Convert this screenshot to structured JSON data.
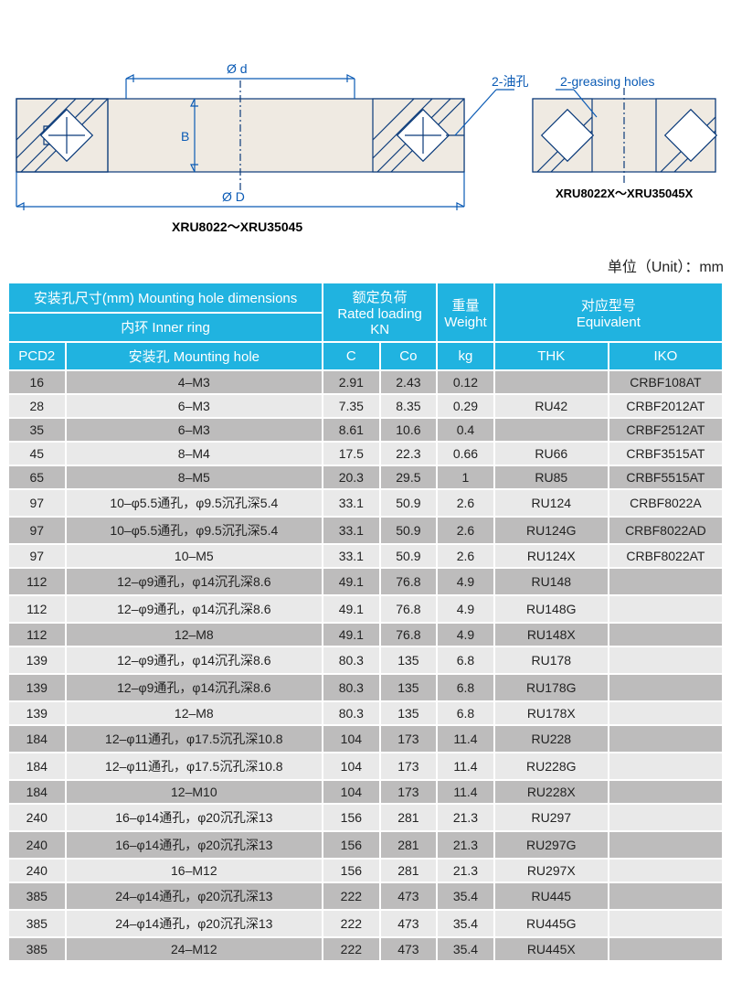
{
  "diagram": {
    "label_d": "Ø d",
    "label_B": "B",
    "label_D": "Ø D",
    "callout_left": "2-油孔",
    "callout_right": "2-greasing holes",
    "caption_left": "XRU8022～XRU35045",
    "caption_right": "XRU8022X～XRU35045X"
  },
  "unit_label": "单位（Unit）：mm",
  "headers": {
    "mount_dims": "安装孔尺寸(mm) Mounting hole dimensions",
    "inner_ring": "内环 Inner ring",
    "rated_cn": "额定负荷",
    "rated_en": "Rated loading",
    "rated_unit": "KN",
    "weight_cn": "重量",
    "weight_en": "Weight",
    "equiv_cn": "对应型号",
    "equiv_en": "Equivalent",
    "pcd2": "PCD2",
    "mount_hole": "安装孔 Mounting hole",
    "c": "C",
    "co": "Co",
    "kg": "kg",
    "thk": "THK",
    "iko": "IKO"
  },
  "rows": [
    {
      "pcd2": "16",
      "hole": "4–M3",
      "c": "2.91",
      "co": "2.43",
      "kg": "0.12",
      "thk": "",
      "iko": "CRBF108AT",
      "shade": "gray"
    },
    {
      "pcd2": "28",
      "hole": "6–M3",
      "c": "7.35",
      "co": "8.35",
      "kg": "0.29",
      "thk": "RU42",
      "iko": "CRBF2012AT",
      "shade": "light"
    },
    {
      "pcd2": "35",
      "hole": "6–M3",
      "c": "8.61",
      "co": "10.6",
      "kg": "0.4",
      "thk": "",
      "iko": "CRBF2512AT",
      "shade": "gray"
    },
    {
      "pcd2": "45",
      "hole": "8–M4",
      "c": "17.5",
      "co": "22.3",
      "kg": "0.66",
      "thk": "RU66",
      "iko": "CRBF3515AT",
      "shade": "light"
    },
    {
      "pcd2": "65",
      "hole": "8–M5",
      "c": "20.3",
      "co": "29.5",
      "kg": "1",
      "thk": "RU85",
      "iko": "CRBF5515AT",
      "shade": "gray"
    },
    {
      "pcd2": "97",
      "hole": "10–φ5.5通孔，φ9.5沉孔深5.4",
      "c": "33.1",
      "co": "50.9",
      "kg": "2.6",
      "thk": "RU124",
      "iko": "CRBF8022A",
      "shade": "light"
    },
    {
      "pcd2": "97",
      "hole": "10–φ5.5通孔，φ9.5沉孔深5.4",
      "c": "33.1",
      "co": "50.9",
      "kg": "2.6",
      "thk": "RU124G",
      "iko": "CRBF8022AD",
      "shade": "gray"
    },
    {
      "pcd2": "97",
      "hole": "10–M5",
      "c": "33.1",
      "co": "50.9",
      "kg": "2.6",
      "thk": "RU124X",
      "iko": "CRBF8022AT",
      "shade": "light"
    },
    {
      "pcd2": "112",
      "hole": "12–φ9通孔，φ14沉孔深8.6",
      "c": "49.1",
      "co": "76.8",
      "kg": "4.9",
      "thk": "RU148",
      "iko": "",
      "shade": "gray"
    },
    {
      "pcd2": "112",
      "hole": "12–φ9通孔，φ14沉孔深8.6",
      "c": "49.1",
      "co": "76.8",
      "kg": "4.9",
      "thk": "RU148G",
      "iko": "",
      "shade": "light"
    },
    {
      "pcd2": "112",
      "hole": "12–M8",
      "c": "49.1",
      "co": "76.8",
      "kg": "4.9",
      "thk": "RU148X",
      "iko": "",
      "shade": "gray"
    },
    {
      "pcd2": "139",
      "hole": "12–φ9通孔，φ14沉孔深8.6",
      "c": "80.3",
      "co": "135",
      "kg": "6.8",
      "thk": "RU178",
      "iko": "",
      "shade": "light"
    },
    {
      "pcd2": "139",
      "hole": "12–φ9通孔，φ14沉孔深8.6",
      "c": "80.3",
      "co": "135",
      "kg": "6.8",
      "thk": "RU178G",
      "iko": "",
      "shade": "gray"
    },
    {
      "pcd2": "139",
      "hole": "12–M8",
      "c": "80.3",
      "co": "135",
      "kg": "6.8",
      "thk": "RU178X",
      "iko": "",
      "shade": "light"
    },
    {
      "pcd2": "184",
      "hole": "12–φ11通孔，φ17.5沉孔深10.8",
      "c": "104",
      "co": "173",
      "kg": "11.4",
      "thk": "RU228",
      "iko": "",
      "shade": "gray"
    },
    {
      "pcd2": "184",
      "hole": "12–φ11通孔，φ17.5沉孔深10.8",
      "c": "104",
      "co": "173",
      "kg": "11.4",
      "thk": "RU228G",
      "iko": "",
      "shade": "light"
    },
    {
      "pcd2": "184",
      "hole": "12–M10",
      "c": "104",
      "co": "173",
      "kg": "11.4",
      "thk": "RU228X",
      "iko": "",
      "shade": "gray"
    },
    {
      "pcd2": "240",
      "hole": "16–φ14通孔，φ20沉孔深13",
      "c": "156",
      "co": "281",
      "kg": "21.3",
      "thk": "RU297",
      "iko": "",
      "shade": "light"
    },
    {
      "pcd2": "240",
      "hole": "16–φ14通孔，φ20沉孔深13",
      "c": "156",
      "co": "281",
      "kg": "21.3",
      "thk": "RU297G",
      "iko": "",
      "shade": "gray"
    },
    {
      "pcd2": "240",
      "hole": "16–M12",
      "c": "156",
      "co": "281",
      "kg": "21.3",
      "thk": "RU297X",
      "iko": "",
      "shade": "light"
    },
    {
      "pcd2": "385",
      "hole": "24–φ14通孔，φ20沉孔深13",
      "c": "222",
      "co": "473",
      "kg": "35.4",
      "thk": "RU445",
      "iko": "",
      "shade": "gray"
    },
    {
      "pcd2": "385",
      "hole": "24–φ14通孔，φ20沉孔深13",
      "c": "222",
      "co": "473",
      "kg": "35.4",
      "thk": "RU445G",
      "iko": "",
      "shade": "light"
    },
    {
      "pcd2": "385",
      "hole": "24–M12",
      "c": "222",
      "co": "473",
      "kg": "35.4",
      "thk": "RU445X",
      "iko": "",
      "shade": "gray"
    }
  ],
  "col_widths_pct": [
    8,
    36,
    8,
    8,
    8,
    16,
    16
  ]
}
